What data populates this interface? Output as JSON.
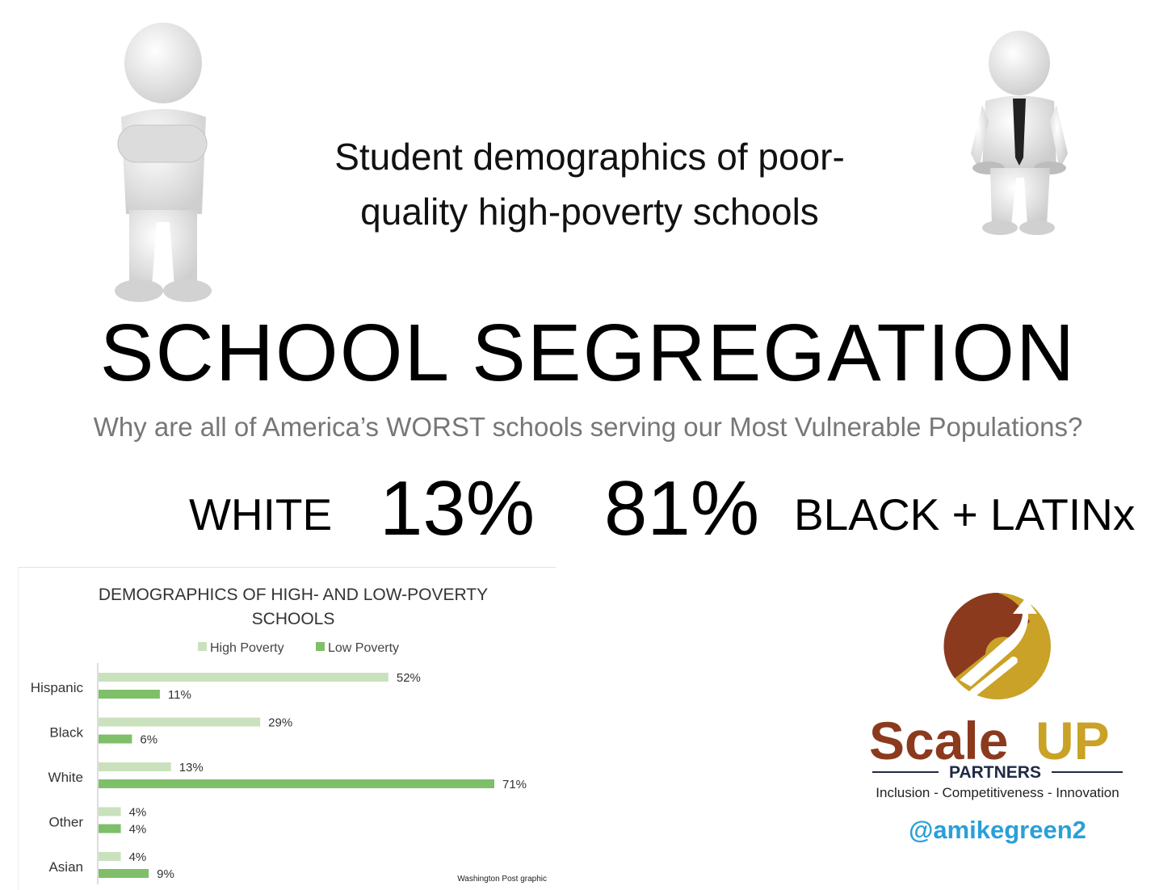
{
  "headline_line1": "Student demographics of poor-",
  "headline_line2": "quality high-poverty schools",
  "main_title": "SCHOOL SEGREGATION",
  "question": "Why are all of America’s WORST schools serving our Most Vulnerable Populations?",
  "stats": {
    "white_label": "WHITE",
    "white_pct": "13%",
    "other_pct": "81%",
    "other_label": "BLACK + LATINx"
  },
  "chart_data": {
    "type": "bar",
    "orientation": "horizontal",
    "title_line1": "DEMOGRAPHICS OF HIGH- AND LOW-POVERTY",
    "title_line2": "SCHOOLS",
    "categories": [
      "Hispanic",
      "Black",
      "White",
      "Other",
      "Asian"
    ],
    "series": [
      {
        "name": "High Poverty",
        "values": [
          52,
          29,
          13,
          4,
          4
        ],
        "color": "#c9e2bd"
      },
      {
        "name": "Low Poverty",
        "values": [
          11,
          6,
          71,
          4,
          9
        ],
        "color": "#7fbf6a"
      }
    ],
    "value_labels": {
      "High Poverty": [
        "52%",
        "29%",
        "13%",
        "4%",
        "4%"
      ],
      "Low Poverty": [
        "11%",
        "6%",
        "71%",
        "4%",
        "9%"
      ]
    },
    "xlim": [
      0,
      75
    ],
    "legend": "top-center",
    "grid": false,
    "source": "Washington Post graphic"
  },
  "logo": {
    "brand_scale": "Scale",
    "brand_up": "UP",
    "brand_partners": "PARTNERS",
    "color_brown": "#8b3a1e",
    "color_gold": "#c9a227",
    "color_navy": "#1f2a44"
  },
  "tagline": "Inclusion - Competitiveness - Innovation",
  "handle": "@amikegreen2"
}
